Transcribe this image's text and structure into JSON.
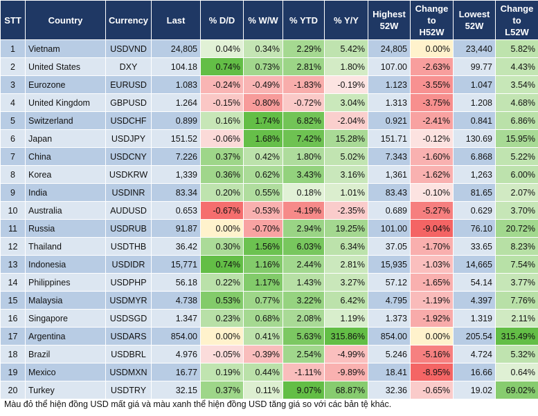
{
  "table": {
    "header": [
      "STT",
      "Country",
      "Currency",
      "Last",
      "% D/D",
      "% W/W",
      "% YTD",
      "% Y/Y",
      "Highest\n52W",
      "Change\nto\nH52W",
      "Lowest\n52W",
      "Change\nto\nL52W"
    ],
    "rows": [
      [
        "1",
        "Vietnam",
        "USDVND",
        "24,805",
        "0.04%",
        "0.34%",
        "2.29%",
        "5.42%",
        "24,805",
        "0.00%",
        "23,440",
        "5.82%"
      ],
      [
        "2",
        "United States",
        "DXY",
        "104.18",
        "0.74%",
        "0.73%",
        "2.81%",
        "1.80%",
        "107.00",
        "-2.63%",
        "99.77",
        "4.43%"
      ],
      [
        "3",
        "Eurozone",
        "EURUSD",
        "1.083",
        "-0.24%",
        "-0.49%",
        "-1.83%",
        "-0.19%",
        "1.123",
        "-3.55%",
        "1.047",
        "3.54%"
      ],
      [
        "4",
        "United Kingdom",
        "GBPUSD",
        "1.264",
        "-0.15%",
        "-0.80%",
        "-0.72%",
        "3.04%",
        "1.313",
        "-3.75%",
        "1.208",
        "4.68%"
      ],
      [
        "5",
        "Switzerland",
        "USDCHF",
        "0.899",
        "0.16%",
        "1.74%",
        "6.82%",
        "-2.04%",
        "0.921",
        "-2.41%",
        "0.841",
        "6.86%"
      ],
      [
        "6",
        "Japan",
        "USDJPY",
        "151.52",
        "-0.06%",
        "1.68%",
        "7.42%",
        "15.28%",
        "151.71",
        "-0.12%",
        "130.69",
        "15.95%"
      ],
      [
        "7",
        "China",
        "USDCNY",
        "7.226",
        "0.37%",
        "0.42%",
        "1.80%",
        "5.02%",
        "7.343",
        "-1.60%",
        "6.868",
        "5.22%"
      ],
      [
        "8",
        "Korea",
        "USDKRW",
        "1,339",
        "0.36%",
        "0.62%",
        "3.43%",
        "3.16%",
        "1,361",
        "-1.62%",
        "1,263",
        "6.00%"
      ],
      [
        "9",
        "India",
        "USDINR",
        "83.34",
        "0.20%",
        "0.55%",
        "0.18%",
        "1.01%",
        "83.43",
        "-0.10%",
        "81.65",
        "2.07%"
      ],
      [
        "10",
        "Australia",
        "AUDUSD",
        "0.653",
        "-0.67%",
        "-0.53%",
        "-4.19%",
        "-2.35%",
        "0.689",
        "-5.27%",
        "0.629",
        "3.70%"
      ],
      [
        "11",
        "Russia",
        "USDRUB",
        "91.87",
        "0.00%",
        "-0.70%",
        "2.94%",
        "19.25%",
        "101.00",
        "-9.04%",
        "76.10",
        "20.72%"
      ],
      [
        "12",
        "Thailand",
        "USDTHB",
        "36.42",
        "0.30%",
        "1.56%",
        "6.03%",
        "6.34%",
        "37.05",
        "-1.70%",
        "33.65",
        "8.23%"
      ],
      [
        "13",
        "Indonesia",
        "USDIDR",
        "15,771",
        "0.74%",
        "1.16%",
        "2.44%",
        "2.81%",
        "15,935",
        "-1.03%",
        "14,665",
        "7.54%"
      ],
      [
        "14",
        "Philippines",
        "USDPHP",
        "56.18",
        "0.22%",
        "1.17%",
        "1.43%",
        "3.27%",
        "57.12",
        "-1.65%",
        "54.14",
        "3.77%"
      ],
      [
        "15",
        "Malaysia",
        "USDMYR",
        "4.738",
        "0.53%",
        "0.77%",
        "3.22%",
        "6.42%",
        "4.795",
        "-1.19%",
        "4.397",
        "7.76%"
      ],
      [
        "16",
        "Singapore",
        "USDSGD",
        "1.347",
        "0.23%",
        "0.68%",
        "2.08%",
        "1.19%",
        "1.373",
        "-1.92%",
        "1.319",
        "2.11%"
      ],
      [
        "17",
        "Argentina",
        "USDARS",
        "854.00",
        "0.00%",
        "0.41%",
        "5.63%",
        "315.86%",
        "854.00",
        "0.00%",
        "205.54",
        "315.49%"
      ],
      [
        "18",
        "Brazil",
        "USDBRL",
        "4.976",
        "-0.05%",
        "-0.39%",
        "2.54%",
        "-4.99%",
        "5.246",
        "-5.16%",
        "4.724",
        "5.32%"
      ],
      [
        "19",
        "Mexico",
        "USDMXN",
        "16.77",
        "0.19%",
        "0.44%",
        "-1.11%",
        "-9.89%",
        "18.41",
        "-8.95%",
        "16.66",
        "0.64%"
      ],
      [
        "20",
        "Turkey",
        "USDTRY",
        "32.15",
        "0.37%",
        "0.11%",
        "9.07%",
        "68.87%",
        "32.36",
        "-0.65%",
        "19.02",
        "69.02%"
      ]
    ]
  },
  "note": "Màu đỏ thể hiện đồng USD mất giá và màu xanh thể hiện đồng USD tăng giá so với các bản tệ khác."
}
